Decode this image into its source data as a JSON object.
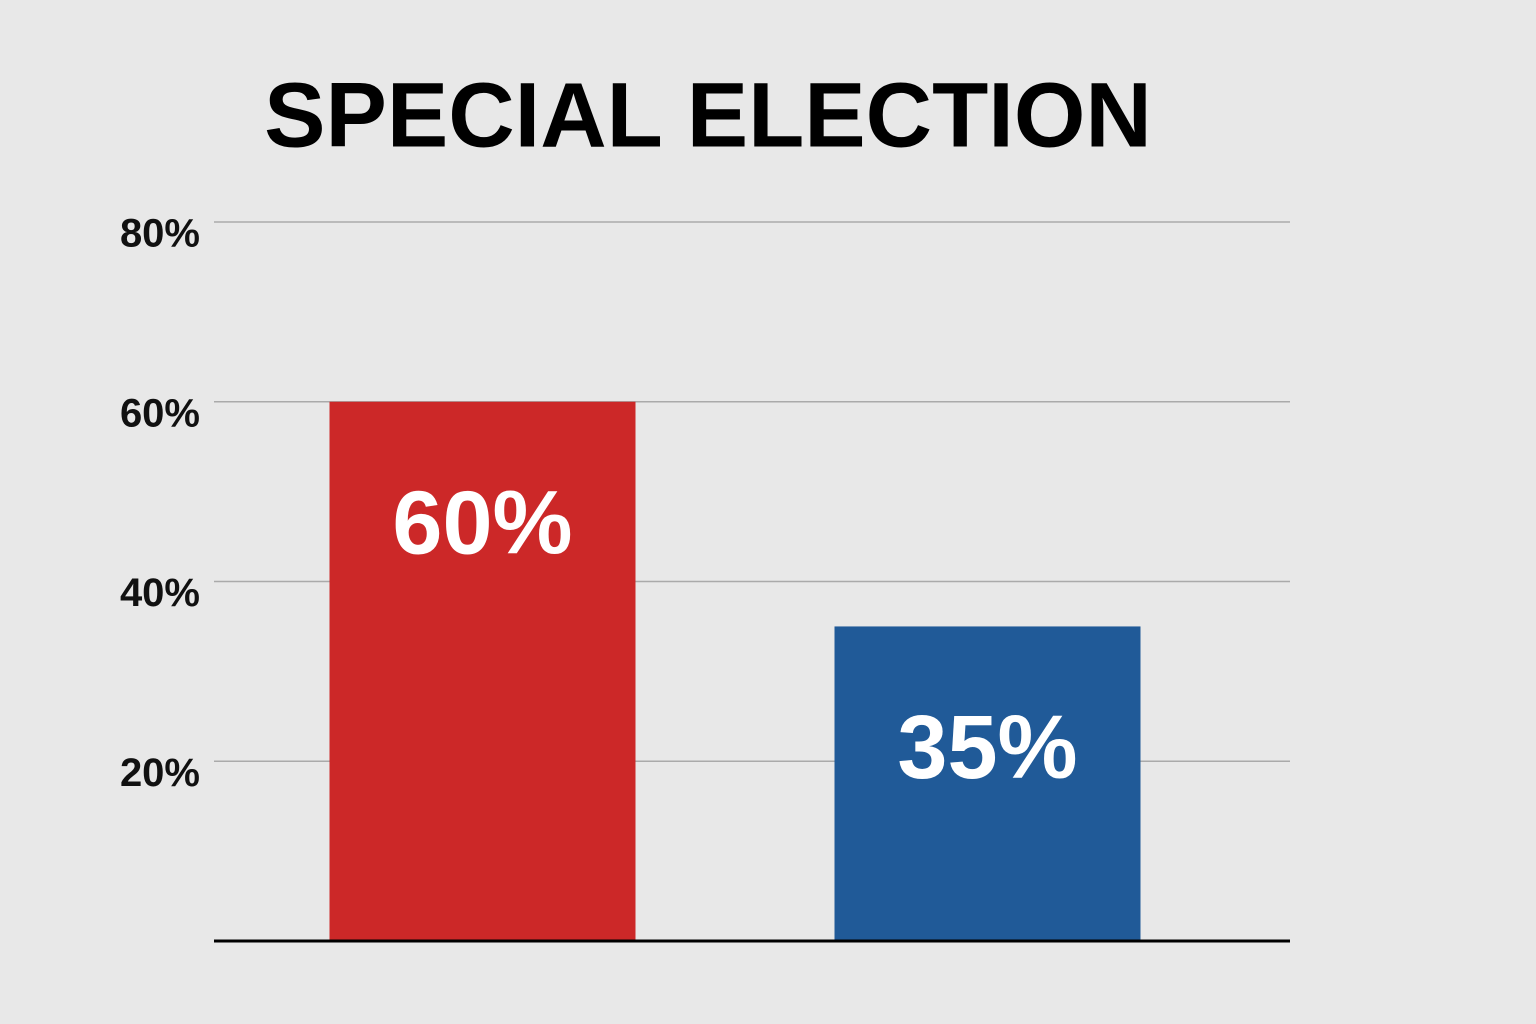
{
  "chart_data": {
    "type": "bar",
    "title": "SPECIAL ELECTION",
    "categories": [
      null,
      null
    ],
    "values": [
      60,
      35
    ],
    "value_labels": [
      "60%",
      "35%"
    ],
    "colors": [
      "#cc2828",
      "#205a98"
    ],
    "ylim": [
      0,
      80
    ],
    "yticks": [
      {
        "value": 20,
        "label": "20%"
      },
      {
        "value": 40,
        "label": "40%"
      },
      {
        "value": 60,
        "label": "60%"
      },
      {
        "value": 80,
        "label": "80%"
      }
    ],
    "grid": true
  }
}
